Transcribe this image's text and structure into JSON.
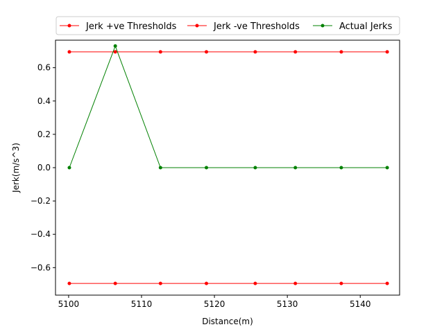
{
  "chart_data": {
    "type": "line",
    "title": "",
    "xlabel": "Distance(m)",
    "ylabel": "Jerk(m/s^3)",
    "xlim": [
      5098.2,
      5145.4
    ],
    "ylim": [
      -0.765,
      0.765
    ],
    "xticks": [
      5100,
      5110,
      5120,
      5130,
      5140
    ],
    "yticks": [
      -0.6,
      -0.4,
      -0.2,
      0.0,
      0.2,
      0.4,
      0.6
    ],
    "xtick_labels": [
      "5100",
      "5110",
      "5120",
      "5130",
      "5140"
    ],
    "ytick_labels": [
      "−0.6",
      "−0.4",
      "−0.2",
      "0.0",
      "0.2",
      "0.4",
      "0.6"
    ],
    "x": [
      5100.1,
      5106.4,
      5112.6,
      5118.9,
      5125.6,
      5131.1,
      5137.4,
      5143.7
    ],
    "series": [
      {
        "name": "Jerk +ve Thresholds",
        "color": "#ff0000",
        "values": [
          0.695,
          0.695,
          0.695,
          0.695,
          0.695,
          0.695,
          0.695,
          0.695
        ]
      },
      {
        "name": "Jerk -ve Thresholds",
        "color": "#ff0000",
        "values": [
          -0.695,
          -0.695,
          -0.695,
          -0.695,
          -0.695,
          -0.695,
          -0.695,
          -0.695
        ]
      },
      {
        "name": "Actual Jerks",
        "color": "#008000",
        "values": [
          0.0,
          0.73,
          0.0,
          0.0,
          0.0,
          0.0,
          0.0,
          0.0
        ]
      }
    ],
    "grid": false,
    "legend_position": "top-center-outside"
  }
}
